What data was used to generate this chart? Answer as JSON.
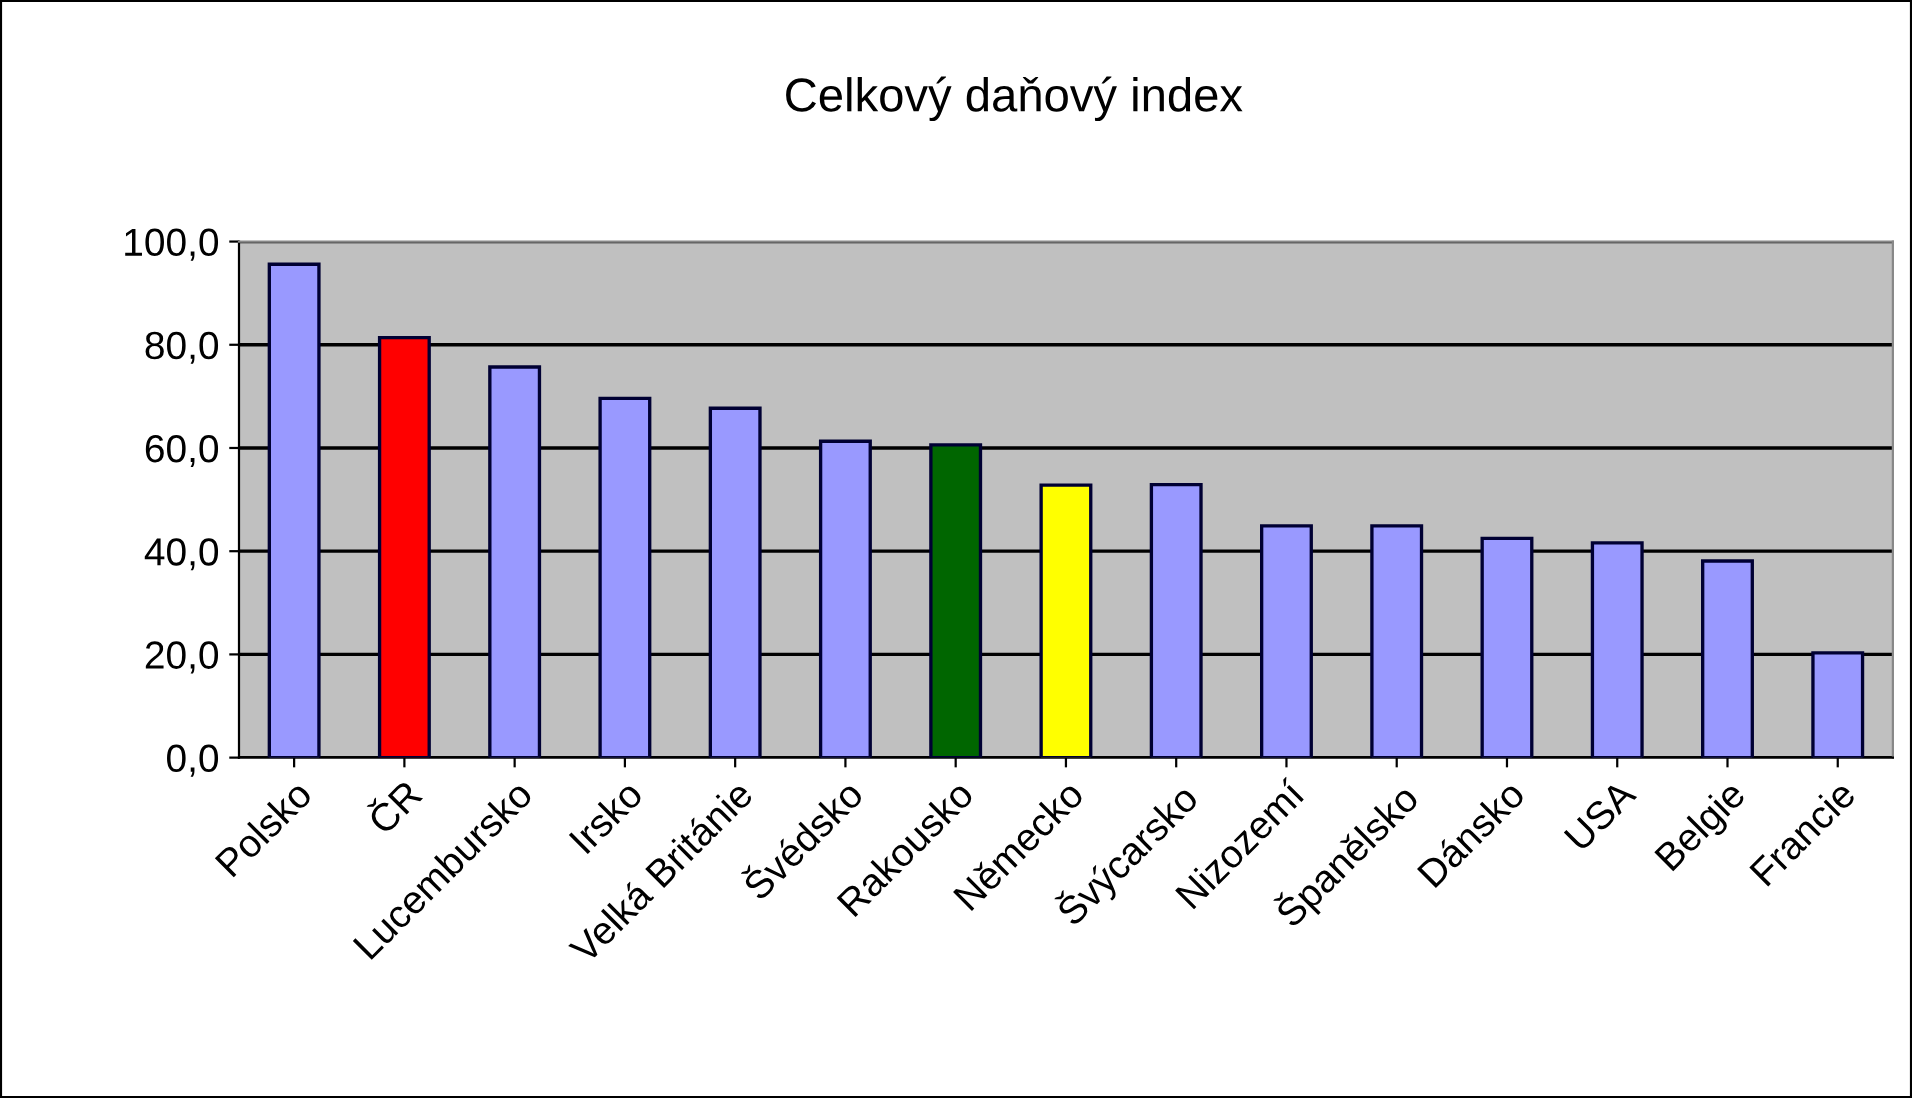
{
  "chart_data": {
    "type": "bar",
    "title": "Celkový daňový index",
    "categories": [
      "Polsko",
      "ČR",
      "Lucembursko",
      "Irsko",
      "Velká Británie",
      "Švédsko",
      "Rakousko",
      "Německo",
      "Švýcarsko",
      "Nizozemí",
      "Španělsko",
      "Dánsko",
      "USA",
      "Belgie",
      "Francie"
    ],
    "values": [
      95.6,
      81.4,
      75.7,
      69.6,
      67.7,
      61.3,
      60.6,
      52.8,
      52.9,
      44.9,
      44.9,
      42.5,
      41.6,
      38.1,
      20.3
    ],
    "colors": [
      "#9999ff",
      "#ff0000",
      "#9999ff",
      "#9999ff",
      "#9999ff",
      "#9999ff",
      "#006600",
      "#ffff00",
      "#9999ff",
      "#9999ff",
      "#9999ff",
      "#9999ff",
      "#9999ff",
      "#9999ff",
      "#9999ff"
    ],
    "ylim": [
      0,
      100
    ],
    "yticks": [
      {
        "value": 0,
        "label": "0,0"
      },
      {
        "value": 20,
        "label": "20,0"
      },
      {
        "value": 40,
        "label": "40,0"
      },
      {
        "value": 60,
        "label": "60,0"
      },
      {
        "value": 80,
        "label": "80,0"
      },
      {
        "value": 100,
        "label": "100,0"
      }
    ],
    "grid": "y"
  }
}
